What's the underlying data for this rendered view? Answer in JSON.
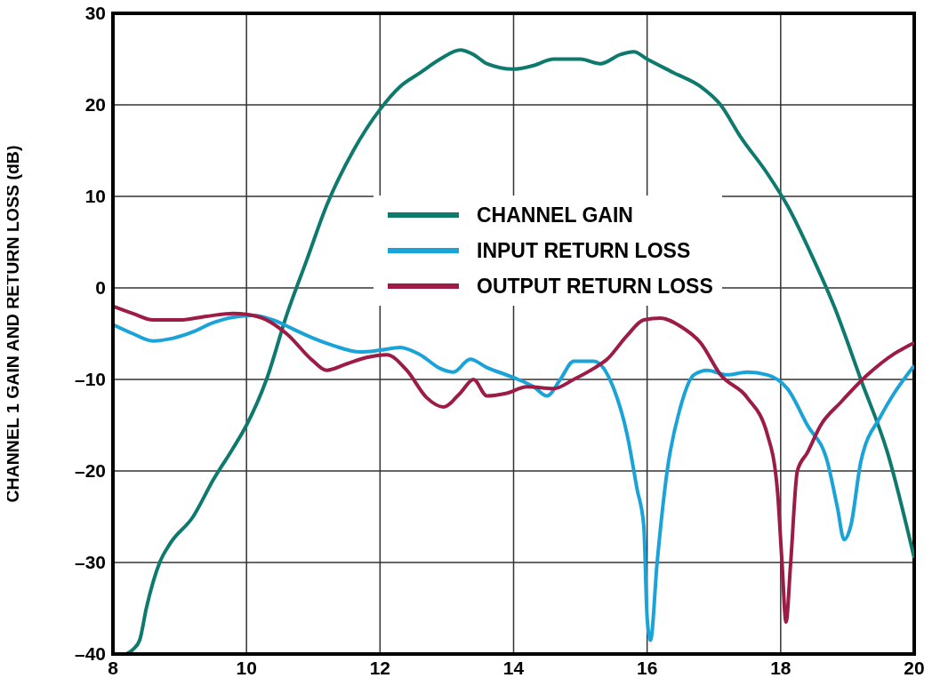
{
  "chart_data": {
    "type": "line",
    "ylabel": "CHANNEL 1 GAIN AND RETURN LOSS (dB)",
    "xlim": [
      8,
      20
    ],
    "xticks": [
      8,
      10,
      12,
      14,
      16,
      18,
      20
    ],
    "ylim": [
      -40,
      30
    ],
    "yticks": [
      {
        "value": -40,
        "label": "–40"
      },
      {
        "value": -30,
        "label": "–30"
      },
      {
        "value": -20,
        "label": "–20"
      },
      {
        "value": -10,
        "label": "–10"
      },
      0,
      10,
      20,
      30
    ],
    "grid": true,
    "legend": "top",
    "line_style": "solid",
    "marker": "none",
    "series": [
      {
        "name": "CHANNEL GAIN",
        "color": "#0e7a6e",
        "x": [
          8.2,
          8.3,
          8.4,
          8.5,
          8.7,
          8.85,
          9.2,
          9.5,
          9.8,
          10,
          10.3,
          10.6,
          10.9,
          11.2,
          11.6,
          12,
          12.3,
          12.6,
          12.9,
          13.2,
          13.4,
          13.6,
          14,
          14.3,
          14.6,
          15,
          15.3,
          15.6,
          15.8,
          16,
          16.4,
          16.8,
          17.1,
          17.4,
          17.8,
          18.1,
          18.5,
          18.8,
          19.2,
          19.6,
          20
        ],
        "values": [
          -40,
          -39.5,
          -38.5,
          -35,
          -30,
          -28,
          -25,
          -21,
          -17.5,
          -15,
          -10,
          -3,
          3,
          9,
          15,
          19.5,
          22,
          23.5,
          25,
          26,
          25.5,
          24.5,
          23.9,
          24.3,
          25,
          25,
          24.5,
          25.5,
          25.8,
          25,
          23.5,
          22,
          20,
          16.5,
          12.5,
          9,
          3,
          -2,
          -10,
          -18,
          -29.5
        ]
      },
      {
        "name": "INPUT RETURN LOSS",
        "color": "#1aa3d9",
        "x": [
          8,
          8.3,
          8.6,
          8.9,
          9.2,
          9.5,
          9.8,
          10.1,
          10.4,
          10.7,
          11,
          11.3,
          11.7,
          12,
          12.3,
          12.6,
          12.9,
          13.1,
          13.35,
          13.6,
          14,
          14.3,
          14.5,
          14.7,
          14.9,
          15.2,
          15.5,
          15.7,
          15.85,
          15.95,
          16,
          16.05,
          16.15,
          16.3,
          16.5,
          16.7,
          16.9,
          17.2,
          17.5,
          17.8,
          18.1,
          18.4,
          18.7,
          18.85,
          18.95,
          19.05,
          19.2,
          19.5,
          19.7,
          20
        ],
        "values": [
          -4,
          -5,
          -5.8,
          -5.5,
          -4.8,
          -3.8,
          -3.2,
          -3,
          -3.5,
          -4.5,
          -5.5,
          -6.3,
          -7,
          -6.8,
          -6.5,
          -7.3,
          -8.8,
          -9.2,
          -7.8,
          -8.7,
          -9.8,
          -10.8,
          -11.8,
          -10,
          -8,
          -8,
          -11,
          -16,
          -22,
          -26,
          -36,
          -38.5,
          -30,
          -20,
          -13,
          -9.5,
          -9,
          -9.5,
          -9.2,
          -9.5,
          -11,
          -15,
          -19,
          -24,
          -27.5,
          -26,
          -19,
          -14,
          -11.5,
          -8.5
        ]
      },
      {
        "name": "OUTPUT RETURN LOSS",
        "color": "#9c1c45",
        "x": [
          8,
          8.3,
          8.6,
          9,
          9.4,
          9.8,
          10.2,
          10.6,
          11,
          11.2,
          11.5,
          11.8,
          12.1,
          12.4,
          12.7,
          12.95,
          13.2,
          13.4,
          13.6,
          13.9,
          14.2,
          14.6,
          14.9,
          15.2,
          15.4,
          15.7,
          15.95,
          16.2,
          16.5,
          16.8,
          17.1,
          17.5,
          17.8,
          17.95,
          18.02,
          18.08,
          18.15,
          18.25,
          18.4,
          18.6,
          18.9,
          19.3,
          19.7,
          20
        ],
        "values": [
          -2,
          -2.8,
          -3.5,
          -3.5,
          -3.1,
          -2.8,
          -3.2,
          -5,
          -8,
          -9,
          -8.3,
          -7.6,
          -7.3,
          -9,
          -12,
          -13,
          -11.5,
          -10,
          -11.8,
          -11.5,
          -10.8,
          -11,
          -10,
          -8.8,
          -7.8,
          -5.2,
          -3.5,
          -3.3,
          -4.2,
          -6,
          -9.5,
          -12,
          -16,
          -22,
          -30,
          -36.5,
          -30,
          -20,
          -18,
          -15,
          -12.5,
          -9.5,
          -7.2,
          -6
        ]
      }
    ]
  }
}
